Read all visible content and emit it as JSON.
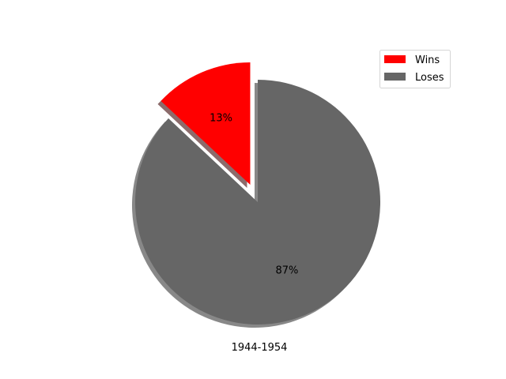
{
  "chart_data": {
    "type": "pie",
    "title": "",
    "xlabel": "1944-1954",
    "slices": [
      {
        "label": "Wins",
        "value": 13,
        "pct_label": "13%",
        "color": "#ff0000",
        "exploded": true
      },
      {
        "label": "Loses",
        "value": 87,
        "pct_label": "87%",
        "color": "#666666",
        "exploded": false
      }
    ],
    "start_angle_deg": 90,
    "shadow": true,
    "legend_placement": "top-right"
  }
}
